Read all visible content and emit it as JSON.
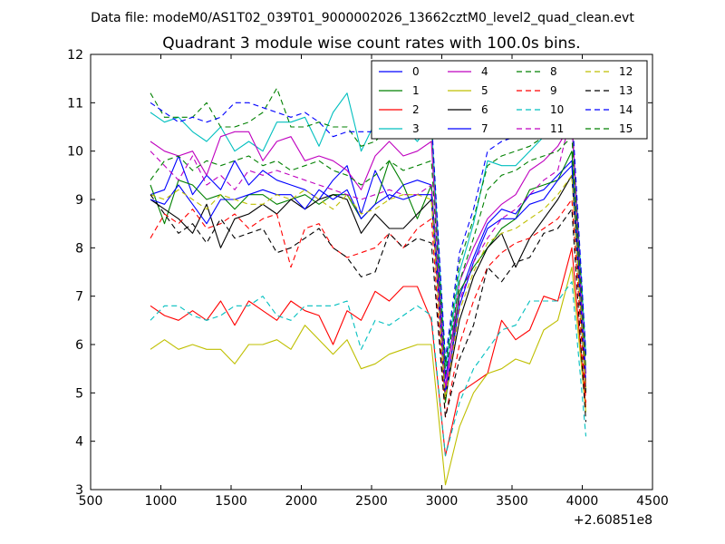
{
  "chart_data": {
    "type": "line",
    "suptitle": "Data file: modeM0/AS1T02_039T01_9000002026_13662cztM0_level2_quad_clean.evt",
    "title": "Quadrant 3 module wise count rates with 100.0s bins.",
    "xlabel": "",
    "ylabel": "",
    "x_offset_label": "+2.60851e8",
    "xlim": [
      500,
      4500
    ],
    "ylim": [
      3,
      12
    ],
    "xticks": [
      500,
      1000,
      1500,
      2000,
      2500,
      3000,
      3500,
      4000,
      4500
    ],
    "yticks": [
      3,
      4,
      5,
      6,
      7,
      8,
      9,
      10,
      11,
      12
    ],
    "x": [
      926,
      1026,
      1126,
      1226,
      1326,
      1426,
      1526,
      1626,
      1726,
      1826,
      1926,
      2026,
      2126,
      2226,
      2326,
      2426,
      2526,
      2626,
      2726,
      2826,
      2926,
      3026,
      3126,
      3226,
      3326,
      3426,
      3526,
      3626,
      3726,
      3826,
      3926,
      4026
    ],
    "legend_columns": 4,
    "series": [
      {
        "name": "0",
        "color": "#0000ff",
        "dash": "solid",
        "values": [
          9.1,
          9.2,
          9.9,
          9.1,
          9.5,
          9.2,
          9.8,
          9.3,
          9.6,
          9.4,
          9.3,
          9.2,
          9.0,
          9.4,
          9.7,
          8.7,
          9.6,
          9.0,
          9.3,
          9.4,
          9.3,
          5.3,
          7.0,
          7.8,
          8.5,
          8.8,
          8.7,
          9.1,
          9.2,
          9.5,
          9.8,
          5.4
        ]
      },
      {
        "name": "1",
        "color": "#008000",
        "dash": "solid",
        "values": [
          9.3,
          8.5,
          9.4,
          9.3,
          9.0,
          9.1,
          8.8,
          9.1,
          9.1,
          8.9,
          9.0,
          9.1,
          8.9,
          9.1,
          9.1,
          8.6,
          8.9,
          9.8,
          9.3,
          8.6,
          9.3,
          4.8,
          7.1,
          7.6,
          8.0,
          8.4,
          8.6,
          9.2,
          9.3,
          9.4,
          10.0,
          5.0
        ]
      },
      {
        "name": "2",
        "color": "#ff0000",
        "dash": "solid",
        "values": [
          6.8,
          6.6,
          6.5,
          6.7,
          6.5,
          6.9,
          6.4,
          6.9,
          6.7,
          6.5,
          6.9,
          6.7,
          6.6,
          6.0,
          6.7,
          6.5,
          7.1,
          6.9,
          7.2,
          7.2,
          6.5,
          3.7,
          5.0,
          5.2,
          5.4,
          6.5,
          6.1,
          6.3,
          7.0,
          6.9,
          8.0,
          4.7
        ]
      },
      {
        "name": "3",
        "color": "#00bfbf",
        "dash": "solid",
        "values": [
          10.8,
          10.6,
          10.7,
          10.4,
          10.2,
          10.5,
          10.0,
          10.2,
          10.0,
          10.6,
          10.6,
          10.7,
          10.1,
          10.8,
          11.2,
          10.0,
          10.6,
          10.5,
          10.5,
          10.2,
          10.6,
          5.5,
          7.5,
          8.5,
          9.8,
          9.7,
          9.7,
          10.0,
          10.3,
          10.4,
          10.6,
          5.8
        ]
      },
      {
        "name": "4",
        "color": "#bf00bf",
        "dash": "solid",
        "values": [
          10.2,
          10.0,
          9.9,
          10.0,
          9.5,
          10.3,
          10.4,
          10.4,
          9.8,
          10.2,
          10.3,
          9.8,
          9.9,
          9.8,
          9.6,
          9.2,
          9.9,
          10.2,
          9.9,
          10.0,
          10.2,
          5.1,
          7.3,
          8.0,
          8.6,
          8.9,
          9.1,
          9.6,
          9.8,
          10.1,
          10.6,
          5.2
        ]
      },
      {
        "name": "5",
        "color": "#bfbf00",
        "dash": "solid",
        "values": [
          5.9,
          6.1,
          5.9,
          6.0,
          5.9,
          5.9,
          5.6,
          6.0,
          6.0,
          6.1,
          5.9,
          6.4,
          6.1,
          5.8,
          6.1,
          5.5,
          5.6,
          5.8,
          5.9,
          6.0,
          6.0,
          3.1,
          4.3,
          5.0,
          5.4,
          5.5,
          5.7,
          5.6,
          6.3,
          6.5,
          7.6,
          4.6
        ]
      },
      {
        "name": "6",
        "color": "#000000",
        "dash": "solid",
        "values": [
          9.0,
          8.8,
          8.6,
          8.3,
          8.9,
          8.0,
          8.6,
          8.7,
          8.9,
          8.7,
          9.0,
          8.8,
          9.0,
          9.1,
          9.0,
          8.3,
          8.7,
          8.4,
          8.4,
          8.7,
          9.0,
          4.9,
          6.5,
          7.4,
          8.0,
          8.3,
          7.6,
          8.2,
          8.6,
          9.0,
          9.5,
          5.0
        ]
      },
      {
        "name": "7",
        "color": "#0000ff",
        "dash": "solid",
        "values": [
          9.0,
          8.9,
          9.3,
          8.9,
          8.5,
          9.0,
          9.0,
          9.1,
          9.2,
          9.1,
          9.1,
          8.8,
          9.2,
          9.0,
          9.2,
          8.6,
          8.9,
          9.1,
          9.0,
          9.1,
          9.1,
          5.0,
          6.8,
          7.7,
          8.4,
          8.6,
          8.6,
          8.9,
          9.0,
          9.4,
          9.7,
          5.2
        ]
      },
      {
        "name": "8",
        "color": "#008000",
        "dash": "dashed",
        "values": [
          11.2,
          10.7,
          10.7,
          10.7,
          11.0,
          10.5,
          10.5,
          10.6,
          10.8,
          11.3,
          10.5,
          10.5,
          10.6,
          10.5,
          10.5,
          10.1,
          10.2,
          10.5,
          10.4,
          10.4,
          10.6,
          5.6,
          7.7,
          8.6,
          9.7,
          9.9,
          10.0,
          10.1,
          10.3,
          10.4,
          10.6,
          5.7
        ]
      },
      {
        "name": "9",
        "color": "#ff0000",
        "dash": "dashed",
        "values": [
          8.2,
          8.7,
          8.5,
          8.8,
          8.4,
          8.5,
          8.7,
          8.4,
          8.6,
          8.7,
          7.6,
          8.4,
          8.5,
          8.0,
          7.8,
          7.9,
          8.0,
          8.3,
          8.0,
          8.4,
          8.6,
          4.5,
          6.0,
          6.9,
          7.6,
          7.9,
          8.1,
          8.2,
          8.4,
          8.6,
          9.0,
          4.8
        ]
      },
      {
        "name": "10",
        "color": "#00bfbf",
        "dash": "dashed",
        "values": [
          6.5,
          6.8,
          6.8,
          6.6,
          6.5,
          6.6,
          6.8,
          6.8,
          7.0,
          6.6,
          6.5,
          6.8,
          6.8,
          6.8,
          6.9,
          5.9,
          6.5,
          6.4,
          6.6,
          6.8,
          6.6,
          3.7,
          4.8,
          5.5,
          5.9,
          6.3,
          6.4,
          6.9,
          6.9,
          6.9,
          7.3,
          4.1
        ]
      },
      {
        "name": "11",
        "color": "#bf00bf",
        "dash": "dashed",
        "values": [
          10.0,
          9.7,
          9.4,
          9.9,
          9.3,
          9.5,
          9.2,
          9.6,
          9.5,
          9.6,
          9.5,
          9.4,
          9.3,
          9.2,
          9.1,
          9.0,
          9.1,
          9.2,
          9.1,
          9.1,
          9.3,
          5.0,
          6.9,
          7.7,
          8.2,
          8.6,
          8.8,
          9.1,
          9.4,
          9.6,
          10.8,
          5.2
        ]
      },
      {
        "name": "12",
        "color": "#bfbf00",
        "dash": "dashed",
        "values": [
          9.1,
          9.0,
          9.2,
          9.0,
          8.8,
          9.1,
          9.0,
          8.9,
          8.9,
          9.1,
          9.0,
          9.2,
          9.0,
          8.8,
          9.1,
          8.7,
          8.8,
          9.0,
          9.1,
          9.1,
          9.0,
          4.9,
          6.7,
          7.5,
          8.1,
          8.3,
          8.4,
          8.6,
          8.8,
          9.1,
          9.5,
          5.1
        ]
      },
      {
        "name": "13",
        "color": "#000000",
        "dash": "dashed",
        "values": [
          9.1,
          8.7,
          8.3,
          8.5,
          8.1,
          8.6,
          8.2,
          8.3,
          8.4,
          7.9,
          8.0,
          8.2,
          8.4,
          8.0,
          7.8,
          7.4,
          7.5,
          8.3,
          8.0,
          8.2,
          8.1,
          4.5,
          5.7,
          6.4,
          7.6,
          7.3,
          7.7,
          7.8,
          8.3,
          8.4,
          8.8,
          4.4
        ]
      },
      {
        "name": "14",
        "color": "#0000ff",
        "dash": "dashed",
        "values": [
          11.0,
          10.8,
          10.6,
          10.7,
          10.6,
          10.7,
          11.0,
          11.0,
          10.9,
          10.8,
          10.7,
          10.8,
          10.6,
          10.3,
          10.4,
          10.4,
          10.4,
          10.5,
          10.5,
          10.5,
          10.7,
          5.7,
          7.9,
          8.8,
          10.0,
          10.2,
          10.3,
          10.4,
          10.5,
          10.6,
          10.9,
          5.8
        ]
      },
      {
        "name": "15",
        "color": "#008000",
        "dash": "dashed",
        "values": [
          9.4,
          9.8,
          9.9,
          9.6,
          9.8,
          9.7,
          9.8,
          9.9,
          9.7,
          9.8,
          9.6,
          9.7,
          9.8,
          9.6,
          9.5,
          9.3,
          9.5,
          9.8,
          9.6,
          9.7,
          9.8,
          5.4,
          7.3,
          8.2,
          9.2,
          9.5,
          9.6,
          9.8,
          9.9,
          10.0,
          10.3,
          5.5
        ]
      }
    ]
  }
}
